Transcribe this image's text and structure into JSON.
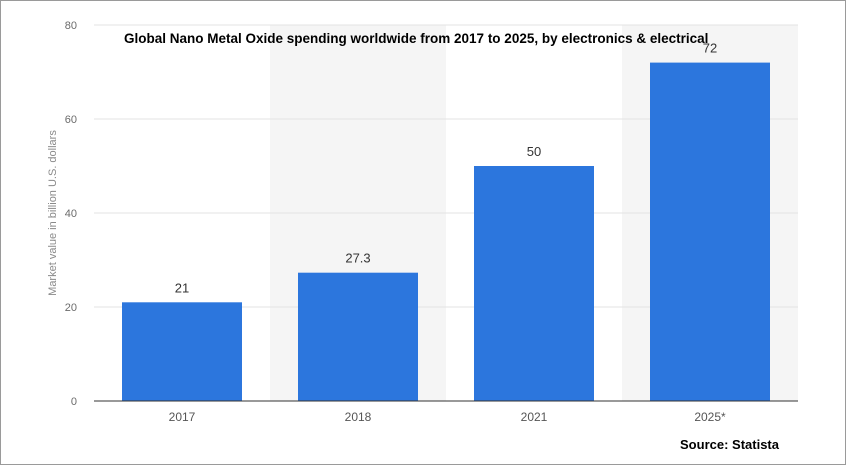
{
  "chart_data": {
    "type": "bar",
    "title": "Global Nano Metal Oxide spending worldwide from 2017 to 2025, by electronics & electrical",
    "ylabel": "Market value in billion U.S. dollars",
    "xlabel": "",
    "categories": [
      "2017",
      "2018",
      "2021",
      "2025*"
    ],
    "values": [
      21,
      27.3,
      50,
      72
    ],
    "data_labels": [
      "21",
      "27.3",
      "50",
      "72"
    ],
    "ylim": [
      0,
      80
    ],
    "yticks": [
      0,
      20,
      40,
      60,
      80
    ],
    "grid": true,
    "bar_color": "#2c76dd",
    "source": "Source: Statista"
  }
}
